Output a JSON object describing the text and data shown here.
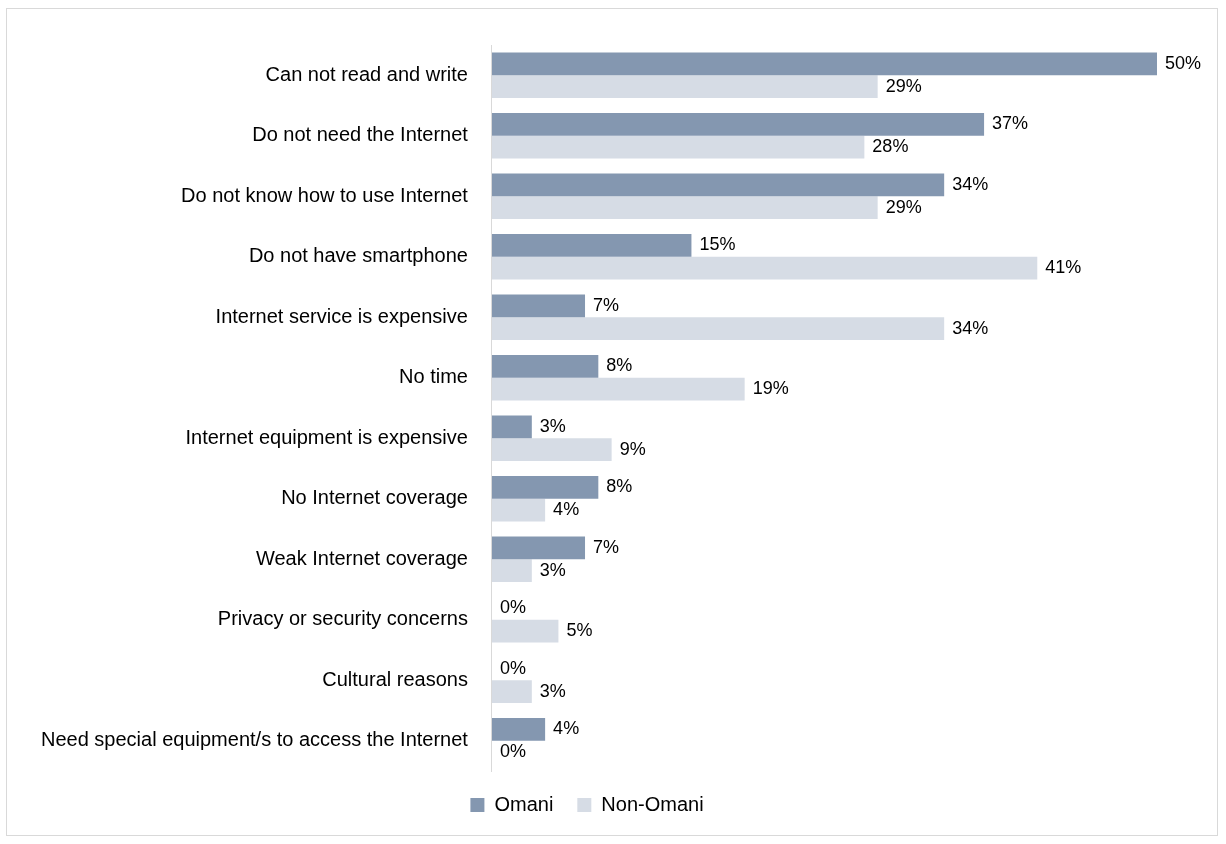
{
  "chart_data": {
    "type": "bar",
    "orientation": "horizontal",
    "legend": "bottom",
    "grid": false,
    "tick_labels": "y",
    "categories": [
      "Can not read and write",
      "Do not need the Internet",
      "Do not know how to use Internet",
      "Do not have smartphone",
      "Internet service is expensive",
      "No time",
      "Internet equipment is expensive",
      "No Internet coverage",
      "Weak Internet coverage",
      "Privacy or security concerns",
      "Cultural reasons",
      "Need special equipment/s to access the Internet"
    ],
    "series": [
      {
        "name": "Omani",
        "color": "#8497b0",
        "values": [
          50,
          37,
          34,
          15,
          7,
          8,
          3,
          8,
          7,
          0,
          0,
          4
        ],
        "value_labels": [
          "50%",
          "37%",
          "34%",
          "15%",
          "7%",
          "8%",
          "3%",
          "8%",
          "7%",
          "0%",
          "0%",
          "4%"
        ]
      },
      {
        "name": "Non-Omani",
        "color": "#d6dce5",
        "values": [
          29,
          28,
          29,
          41,
          34,
          19,
          9,
          4,
          3,
          5,
          3,
          0
        ],
        "value_labels": [
          "29%",
          "28%",
          "29%",
          "41%",
          "34%",
          "19%",
          "9%",
          "4%",
          "3%",
          "5%",
          "3%",
          "0%"
        ]
      }
    ]
  }
}
